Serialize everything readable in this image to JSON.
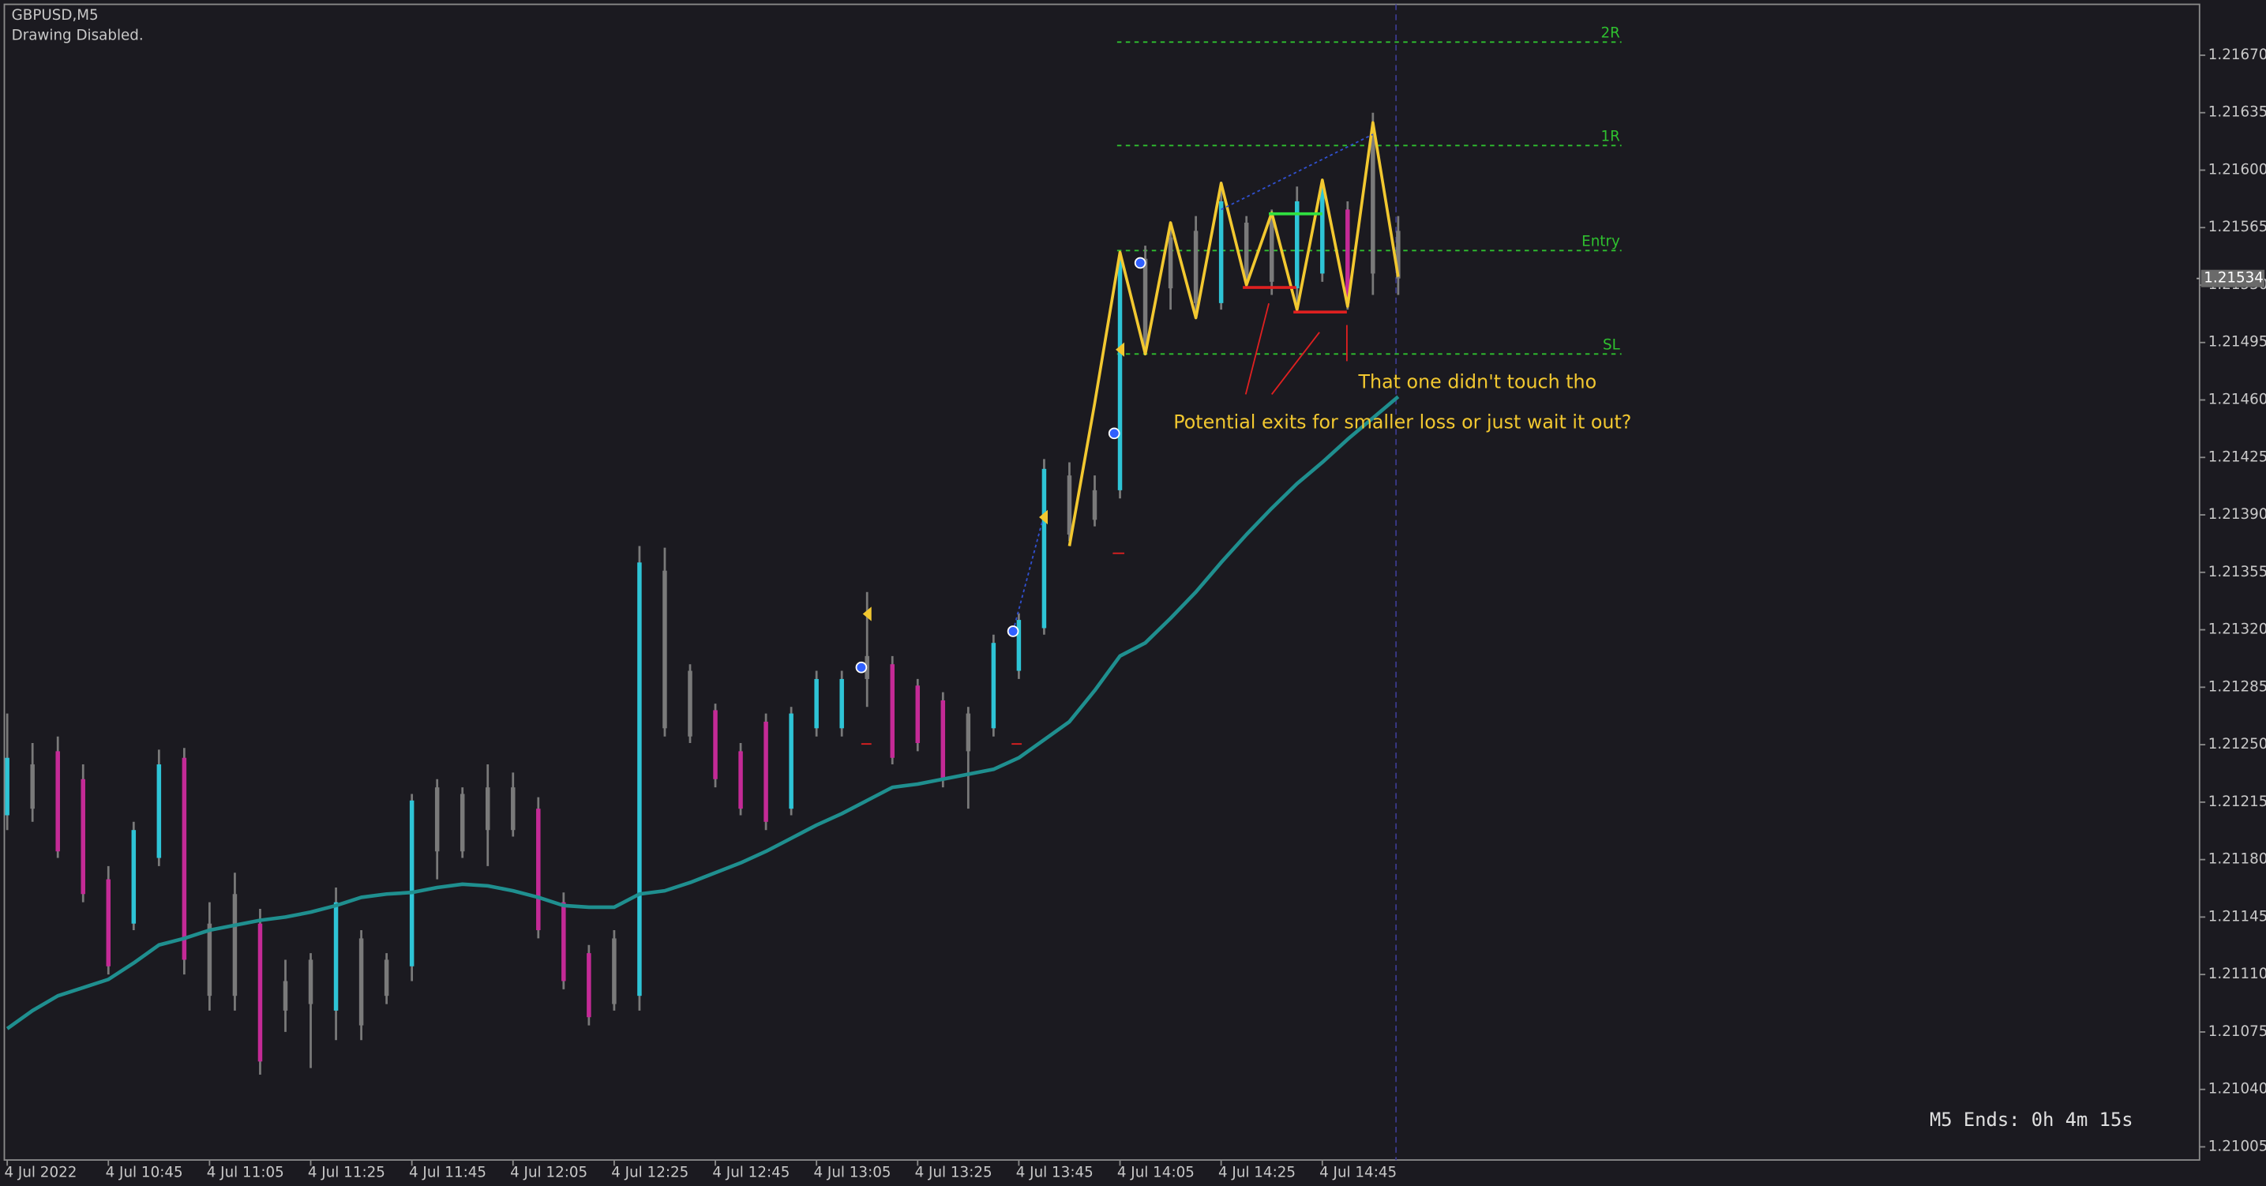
{
  "chart_data": {
    "type": "ohlc",
    "header": {
      "symbol": "GBPUSD,M5",
      "status": "Drawing Disabled."
    },
    "categories": [
      "4 Jul 2022",
      null,
      null,
      null,
      "4 Jul 10:45",
      null,
      null,
      null,
      "4 Jul 11:05",
      null,
      null,
      null,
      "4 Jul 11:25",
      null,
      null,
      null,
      "4 Jul 11:45",
      null,
      null,
      null,
      "4 Jul 12:05",
      null,
      null,
      null,
      "4 Jul 12:25",
      null,
      null,
      null,
      "4 Jul 12:45",
      null,
      null,
      null,
      "4 Jul 13:05",
      null,
      null,
      null,
      "4 Jul 13:25",
      null,
      null,
      null,
      "4 Jul 13:45",
      null,
      null,
      null,
      "4 Jul 14:05",
      null,
      null,
      null,
      "4 Jul 14:25",
      null,
      null,
      null,
      "4 Jul 14:45",
      null,
      null,
      null
    ],
    "high": [
      1.21269,
      1.21251,
      1.21255,
      1.21238,
      1.21176,
      1.21203,
      1.21247,
      1.21248,
      1.21154,
      1.21172,
      1.2115,
      1.21119,
      1.21123,
      1.21163,
      1.21137,
      1.21123,
      1.2122,
      1.21229,
      1.21224,
      1.21238,
      1.21233,
      1.21218,
      1.2116,
      1.21128,
      1.21137,
      1.21371,
      1.2137,
      1.21299,
      1.21275,
      1.21251,
      1.21269,
      1.21273,
      1.21295,
      1.21295,
      1.21343,
      1.21304,
      1.2129,
      1.21282,
      1.21273,
      1.21317,
      1.2133,
      1.21424,
      1.21422,
      1.21414,
      1.2155,
      1.21554,
      1.21568,
      1.21572,
      1.21593,
      1.21572,
      1.21576,
      1.2159,
      1.21594,
      1.21581,
      1.21635,
      1.21572
    ],
    "low": [
      1.21198,
      1.21203,
      1.21181,
      1.21154,
      1.2111,
      1.21137,
      1.21176,
      1.2111,
      1.21088,
      1.21088,
      1.21049,
      1.21075,
      1.21053,
      1.2107,
      1.2107,
      1.21092,
      1.21106,
      1.21168,
      1.21181,
      1.21176,
      1.21194,
      1.21132,
      1.21101,
      1.21079,
      1.21088,
      1.21088,
      1.21255,
      1.21251,
      1.21224,
      1.21207,
      1.21198,
      1.21207,
      1.21255,
      1.21255,
      1.21273,
      1.21238,
      1.21246,
      1.21224,
      1.21211,
      1.21255,
      1.2129,
      1.21317,
      1.21374,
      1.21383,
      1.214,
      1.21488,
      1.21515,
      1.2151,
      1.21515,
      1.21528,
      1.21524,
      1.21515,
      1.21532,
      1.21515,
      1.21524,
      1.21524
    ],
    "open": [
      1.21207,
      1.21211,
      1.21246,
      1.21229,
      1.21168,
      1.21141,
      1.21181,
      1.21242,
      1.21141,
      1.21159,
      1.21141,
      1.21106,
      1.21119,
      1.21088,
      1.21132,
      1.21119,
      1.21115,
      1.21224,
      1.2122,
      1.21224,
      1.21224,
      1.21211,
      1.21154,
      1.21123,
      1.21132,
      1.21097,
      1.21356,
      1.21295,
      1.21271,
      1.21246,
      1.21264,
      1.21211,
      1.2126,
      1.2126,
      1.2129,
      1.21299,
      1.21286,
      1.21277,
      1.21269,
      1.2126,
      1.21295,
      1.21321,
      1.21414,
      1.21405,
      1.21405,
      1.21546,
      1.21528,
      1.21563,
      1.21519,
      1.21568,
      1.21572,
      1.21528,
      1.21537,
      1.21576,
      1.21537,
      1.21563
    ],
    "close": [
      1.21242,
      1.21238,
      1.21185,
      1.21159,
      1.21115,
      1.21198,
      1.21238,
      1.21119,
      1.21097,
      1.21097,
      1.21057,
      1.21088,
      1.21092,
      1.21154,
      1.21079,
      1.21097,
      1.21216,
      1.21185,
      1.21185,
      1.21198,
      1.21198,
      1.21137,
      1.21106,
      1.21084,
      1.21092,
      1.21361,
      1.2126,
      1.21255,
      1.21229,
      1.21211,
      1.21203,
      1.21269,
      1.2129,
      1.2129,
      1.21304,
      1.21242,
      1.21251,
      1.21229,
      1.21246,
      1.21312,
      1.21326,
      1.21418,
      1.21378,
      1.21387,
      1.21546,
      1.21493,
      1.21559,
      1.21519,
      1.21581,
      1.21532,
      1.21532,
      1.21581,
      1.2159,
      1.21519,
      1.2162,
      1.21534
    ],
    "bar_colors": [
      "#2ec4d6",
      "#7a7a7a",
      "#c42a96",
      "#c42a96",
      "#c42a96",
      "#2ec4d6",
      "#2ec4d6",
      "#c42a96",
      "#7a7a7a",
      "#7a7a7a",
      "#c42a96",
      "#7a7a7a",
      "#7a7a7a",
      "#2ec4d6",
      "#7a7a7a",
      "#7a7a7a",
      "#2ec4d6",
      "#7a7a7a",
      "#7a7a7a",
      "#7a7a7a",
      "#7a7a7a",
      "#c42a96",
      "#c42a96",
      "#c42a96",
      "#7a7a7a",
      "#2ec4d6",
      "#7a7a7a",
      "#7a7a7a",
      "#c42a96",
      "#c42a96",
      "#c42a96",
      "#2ec4d6",
      "#2ec4d6",
      "#2ec4d6",
      "#7a7a7a",
      "#c42a96",
      "#c42a96",
      "#c42a96",
      "#7a7a7a",
      "#2ec4d6",
      "#2ec4d6",
      "#2ec4d6",
      "#7a7a7a",
      "#7a7a7a",
      "#2ec4d6",
      "#7a7a7a",
      "#7a7a7a",
      "#7a7a7a",
      "#2ec4d6",
      "#7a7a7a",
      "#7a7a7a",
      "#2ec4d6",
      "#2ec4d6",
      "#c42a96",
      "#7a7a7a",
      "#7a7a7a"
    ],
    "moving_average": {
      "color": "#1f8f8f",
      "values": [
        1.21077,
        1.21088,
        1.21097,
        1.21102,
        1.21107,
        1.21117,
        1.21128,
        1.21132,
        1.21137,
        1.2114,
        1.21143,
        1.21145,
        1.21148,
        1.21152,
        1.21157,
        1.21159,
        1.2116,
        1.21163,
        1.21165,
        1.21164,
        1.21161,
        1.21157,
        1.21152,
        1.21151,
        1.21151,
        1.21159,
        1.21161,
        1.21166,
        1.21172,
        1.21178,
        1.21185,
        1.21193,
        1.21201,
        1.21208,
        1.21216,
        1.21224,
        1.21226,
        1.21229,
        1.21232,
        1.21235,
        1.21242,
        1.21253,
        1.21264,
        1.21283,
        1.21304,
        1.21312,
        1.21327,
        1.21343,
        1.21361,
        1.21378,
        1.21394,
        1.21409,
        1.21422,
        1.21436,
        1.21449,
        1.21462
      ]
    },
    "zigzag": {
      "color": "#f2c830",
      "values": [
        null,
        null,
        null,
        null,
        null,
        null,
        null,
        null,
        null,
        null,
        null,
        null,
        null,
        null,
        null,
        null,
        null,
        null,
        null,
        null,
        null,
        null,
        null,
        null,
        null,
        null,
        null,
        null,
        null,
        null,
        null,
        null,
        null,
        null,
        null,
        null,
        null,
        null,
        null,
        null,
        null,
        null,
        1.21371,
        1.21458,
        1.2155,
        1.21488,
        1.21568,
        1.2151,
        1.21592,
        1.2153,
        1.21574,
        1.21515,
        1.21594,
        1.21517,
        1.21629,
        1.21535
      ]
    },
    "levels": [
      {
        "label": "2R",
        "value": 1.21678
      },
      {
        "label": "1R",
        "value": 1.21615
      },
      {
        "label": "Entry",
        "value": 1.21551
      },
      {
        "label": "SL",
        "value": 1.21488
      }
    ],
    "level_color": "#2fc02f",
    "current_price": 1.21534,
    "annotations": [
      "That one didn't touch tho",
      "Potential exits for smaller loss or just wait it out?"
    ],
    "timer": "M5 Ends: 0h 4m 15s",
    "ylim": [
      1.20997,
      1.21701
    ],
    "yticks": [
      {
        "value": 1.2167,
        "label": "1.21670"
      },
      1.21635,
      {
        "value": 1.216,
        "label": "1.21600"
      },
      1.21565,
      {
        "value": 1.2153,
        "label": "1.21530"
      },
      1.21495,
      {
        "value": 1.2146,
        "label": "1.21460"
      },
      1.21425,
      {
        "value": 1.2139,
        "label": "1.21390"
      },
      1.21355,
      {
        "value": 1.2132,
        "label": "1.21320"
      },
      1.21285,
      {
        "value": 1.2125,
        "label": "1.21250"
      },
      1.21215,
      {
        "value": 1.2118,
        "label": "1.21180"
      },
      1.21145,
      {
        "value": 1.2111,
        "label": "1.21110"
      },
      1.21075,
      {
        "value": 1.2104,
        "label": "1.21040"
      },
      1.21005
    ]
  }
}
